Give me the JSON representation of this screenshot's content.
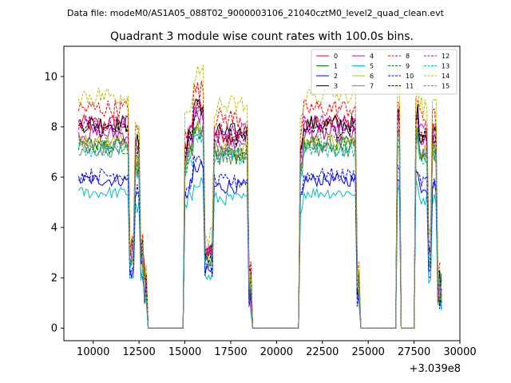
{
  "chart_data": {
    "type": "line",
    "suptitle": "Data file: modeM0/AS1A05_088T02_9000003106_21040cztM0_level2_quad_clean.evt",
    "title": "Quadrant 3 module wise count rates with 100.0s bins.",
    "xlabel": "",
    "ylabel": "",
    "x_offset_label": "+3.039e8",
    "xlim": [
      8400,
      30000
    ],
    "ylim": [
      -0.5,
      11.2
    ],
    "x_ticks": [
      10000,
      12500,
      15000,
      17500,
      20000,
      22500,
      25000,
      27500,
      30000
    ],
    "x_tick_labels": [
      "10000",
      "12500",
      "15000",
      "17500",
      "20000",
      "22500",
      "25000",
      "27500",
      "30000"
    ],
    "y_ticks": [
      0,
      2,
      4,
      6,
      8,
      10
    ],
    "y_tick_labels": [
      "0",
      "2",
      "4",
      "6",
      "8",
      "10"
    ],
    "bin_width": 100,
    "x_start": 9200,
    "x_end": 29000,
    "legend_position": "top-right",
    "segments": [
      {
        "from": 9200,
        "to": 11900,
        "state": "high"
      },
      {
        "from": 12000,
        "to": 12200,
        "state": "dip"
      },
      {
        "from": 12300,
        "to": 12500,
        "state": "peak"
      },
      {
        "from": 12600,
        "to": 12700,
        "state": "dip"
      },
      {
        "from": 12800,
        "to": 12900,
        "state": "fall"
      },
      {
        "from": 13000,
        "to": 14900,
        "state": "zero"
      },
      {
        "from": 15000,
        "to": 15100,
        "state": "rise"
      },
      {
        "from": 15200,
        "to": 15400,
        "state": "level"
      },
      {
        "from": 15500,
        "to": 16000,
        "state": "top"
      },
      {
        "from": 16100,
        "to": 16300,
        "state": "low"
      },
      {
        "from": 16400,
        "to": 16500,
        "state": "dip"
      },
      {
        "from": 16600,
        "to": 18400,
        "state": "level"
      },
      {
        "from": 18500,
        "to": 18600,
        "state": "fall"
      },
      {
        "from": 18700,
        "to": 21200,
        "state": "zero"
      },
      {
        "from": 21300,
        "to": 21400,
        "state": "rise"
      },
      {
        "from": 21500,
        "to": 24300,
        "state": "high"
      },
      {
        "from": 24400,
        "to": 24500,
        "state": "fall"
      },
      {
        "from": 24600,
        "to": 26500,
        "state": "zero"
      },
      {
        "from": 26600,
        "to": 26700,
        "state": "spike"
      },
      {
        "from": 26800,
        "to": 27500,
        "state": "zero"
      },
      {
        "from": 27600,
        "to": 27700,
        "state": "spike"
      },
      {
        "from": 27800,
        "to": 28200,
        "state": "level"
      },
      {
        "from": 28300,
        "to": 28400,
        "state": "dip"
      },
      {
        "from": 28500,
        "to": 28700,
        "state": "level"
      },
      {
        "from": 28800,
        "to": 29000,
        "state": "fall"
      }
    ],
    "series": [
      {
        "name": "0",
        "color": "#ff0000",
        "dash": "solid",
        "base": 8.0
      },
      {
        "name": "1",
        "color": "#008000",
        "dash": "solid",
        "base": 7.2
      },
      {
        "name": "2",
        "color": "#0000ff",
        "dash": "solid",
        "base": 5.8
      },
      {
        "name": "3",
        "color": "#000000",
        "dash": "solid",
        "base": 8.0
      },
      {
        "name": "4",
        "color": "#bf00bf",
        "dash": "solid",
        "base": 7.6
      },
      {
        "name": "5",
        "color": "#00bfbf",
        "dash": "solid",
        "base": 5.3
      },
      {
        "name": "6",
        "color": "#bfbf00",
        "dash": "solid",
        "base": 7.3
      },
      {
        "name": "7",
        "color": "#808080",
        "dash": "solid",
        "base": 7.0
      },
      {
        "name": "8",
        "color": "#ff0000",
        "dash": "dashed",
        "base": 8.6
      },
      {
        "name": "9",
        "color": "#008000",
        "dash": "dashed",
        "base": 7.1
      },
      {
        "name": "10",
        "color": "#0000ff",
        "dash": "dashed",
        "base": 6.0
      },
      {
        "name": "11",
        "color": "#000000",
        "dash": "dashed",
        "base": 7.8
      },
      {
        "name": "12",
        "color": "#bf00bf",
        "dash": "dashed",
        "base": 8.0
      },
      {
        "name": "13",
        "color": "#00bfbf",
        "dash": "dashed",
        "base": 7.0
      },
      {
        "name": "14",
        "color": "#bfbf00",
        "dash": "dashed",
        "base": 9.1
      },
      {
        "name": "15",
        "color": "#808080",
        "dash": "dashed",
        "base": 7.3
      }
    ]
  }
}
